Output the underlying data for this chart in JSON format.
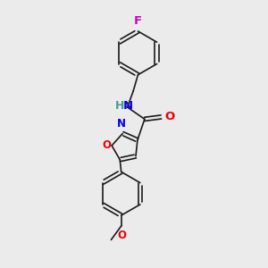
{
  "background_color": "#ebebeb",
  "bond_color": "#1a1a1a",
  "figsize": [
    3.0,
    3.0
  ],
  "dpi": 100,
  "atom_colors": {
    "F": "#cc00cc",
    "N": "#0000ee",
    "O": "#ee0000",
    "H": "#4a9a9a",
    "C": "#1a1a1a"
  }
}
